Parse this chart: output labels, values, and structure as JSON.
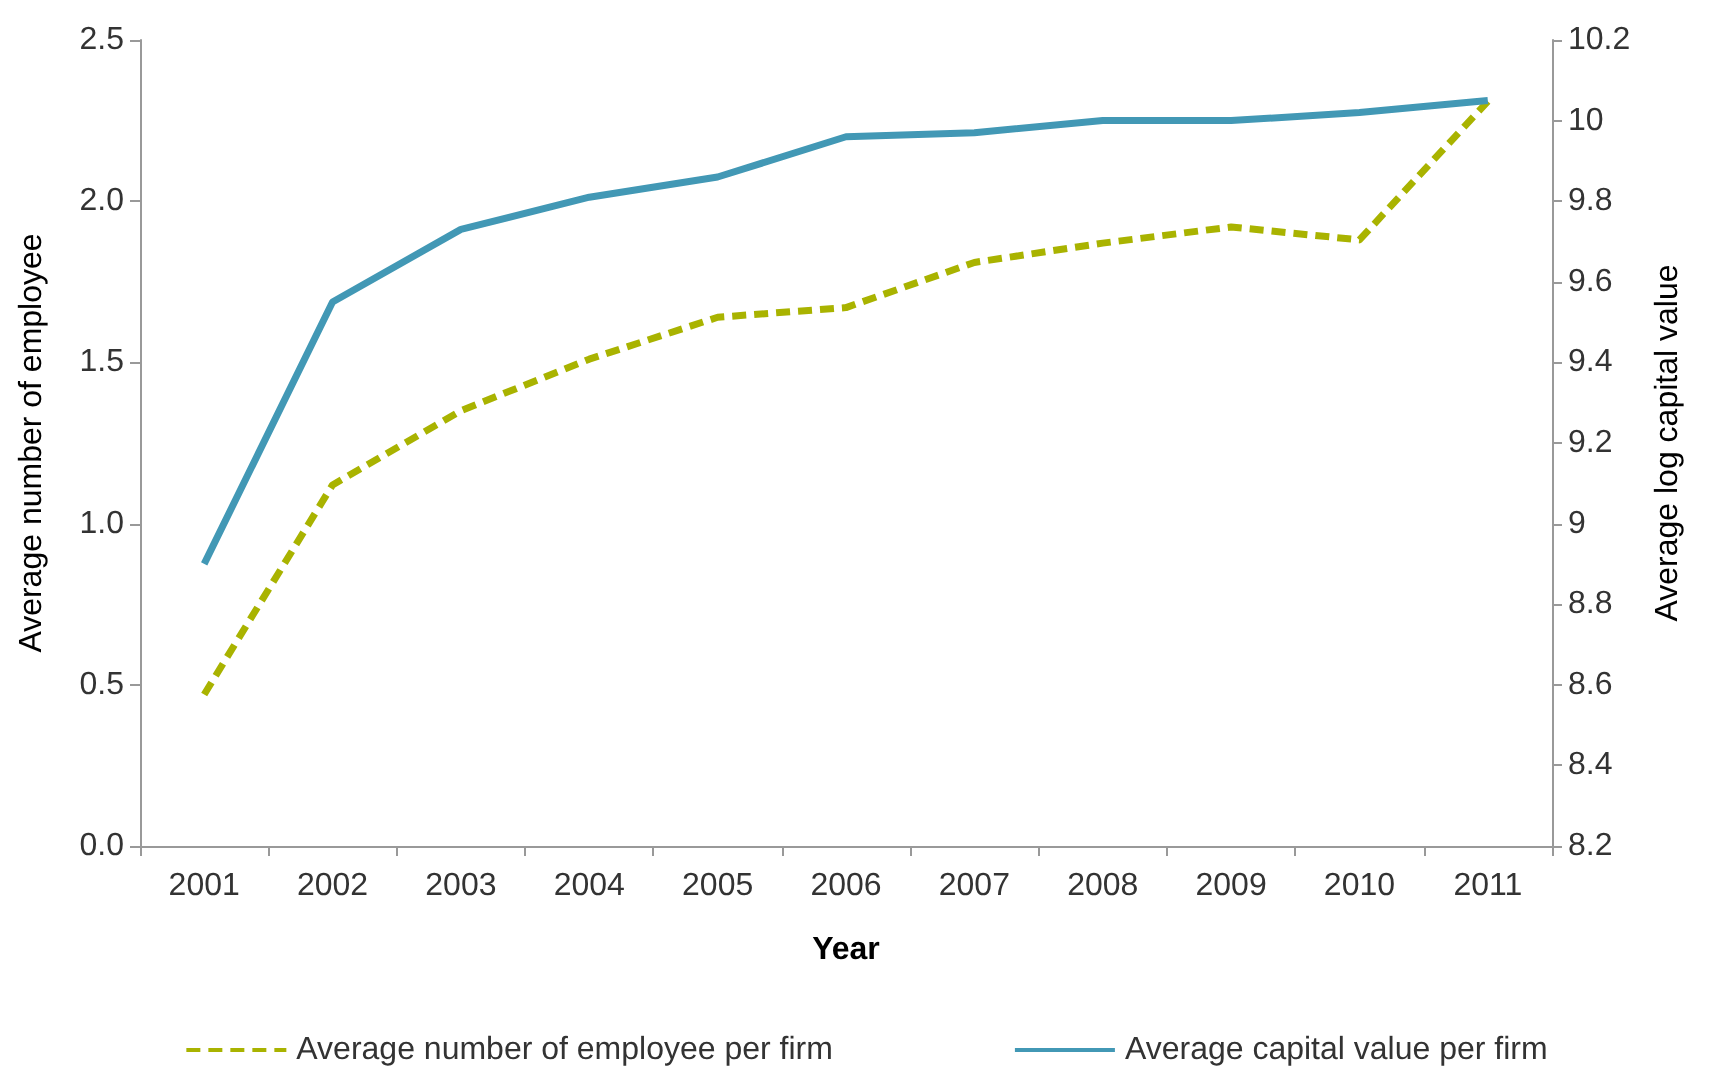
{
  "chart_data": {
    "type": "line",
    "xlabel": "Year",
    "ylabel": "Average number of employee",
    "y2label": "Average log capital value",
    "categories": [
      "2001",
      "2002",
      "2003",
      "2004",
      "2005",
      "2006",
      "2007",
      "2008",
      "2009",
      "2010",
      "2011"
    ],
    "series": [
      {
        "name": "Average number of employee per firm",
        "color": "#a9b300",
        "line_style": "dashed",
        "values": [
          0.47,
          1.12,
          1.35,
          1.51,
          1.64,
          1.67,
          1.81,
          1.87,
          1.92,
          1.88,
          2.31
        ]
      },
      {
        "name": "Average capital value per firm",
        "color": "#4298b5",
        "line_style": "solid",
        "axis": "y2",
        "values": [
          8.9,
          9.55,
          9.73,
          9.81,
          9.86,
          9.96,
          9.97,
          10.0,
          10.0,
          10.02,
          10.05
        ]
      }
    ],
    "ylim": [
      0,
      2.5
    ],
    "yticks": [
      {
        "value": 0,
        "label": "0.0"
      },
      {
        "value": 0.5,
        "label": "0.5"
      },
      {
        "value": 1,
        "label": "1.0"
      },
      {
        "value": 1.5,
        "label": "1.5"
      },
      {
        "value": 2,
        "label": "2.0"
      },
      {
        "value": 2.5,
        "label": "2.5"
      }
    ],
    "y2lim": [
      8.2,
      10.2
    ],
    "y2ticks": [
      8.2,
      8.4,
      8.6,
      8.8,
      9,
      9.2,
      9.4,
      9.6,
      9.8,
      10,
      10.2
    ],
    "grid": false,
    "legend": "bottom",
    "marker": "none"
  }
}
